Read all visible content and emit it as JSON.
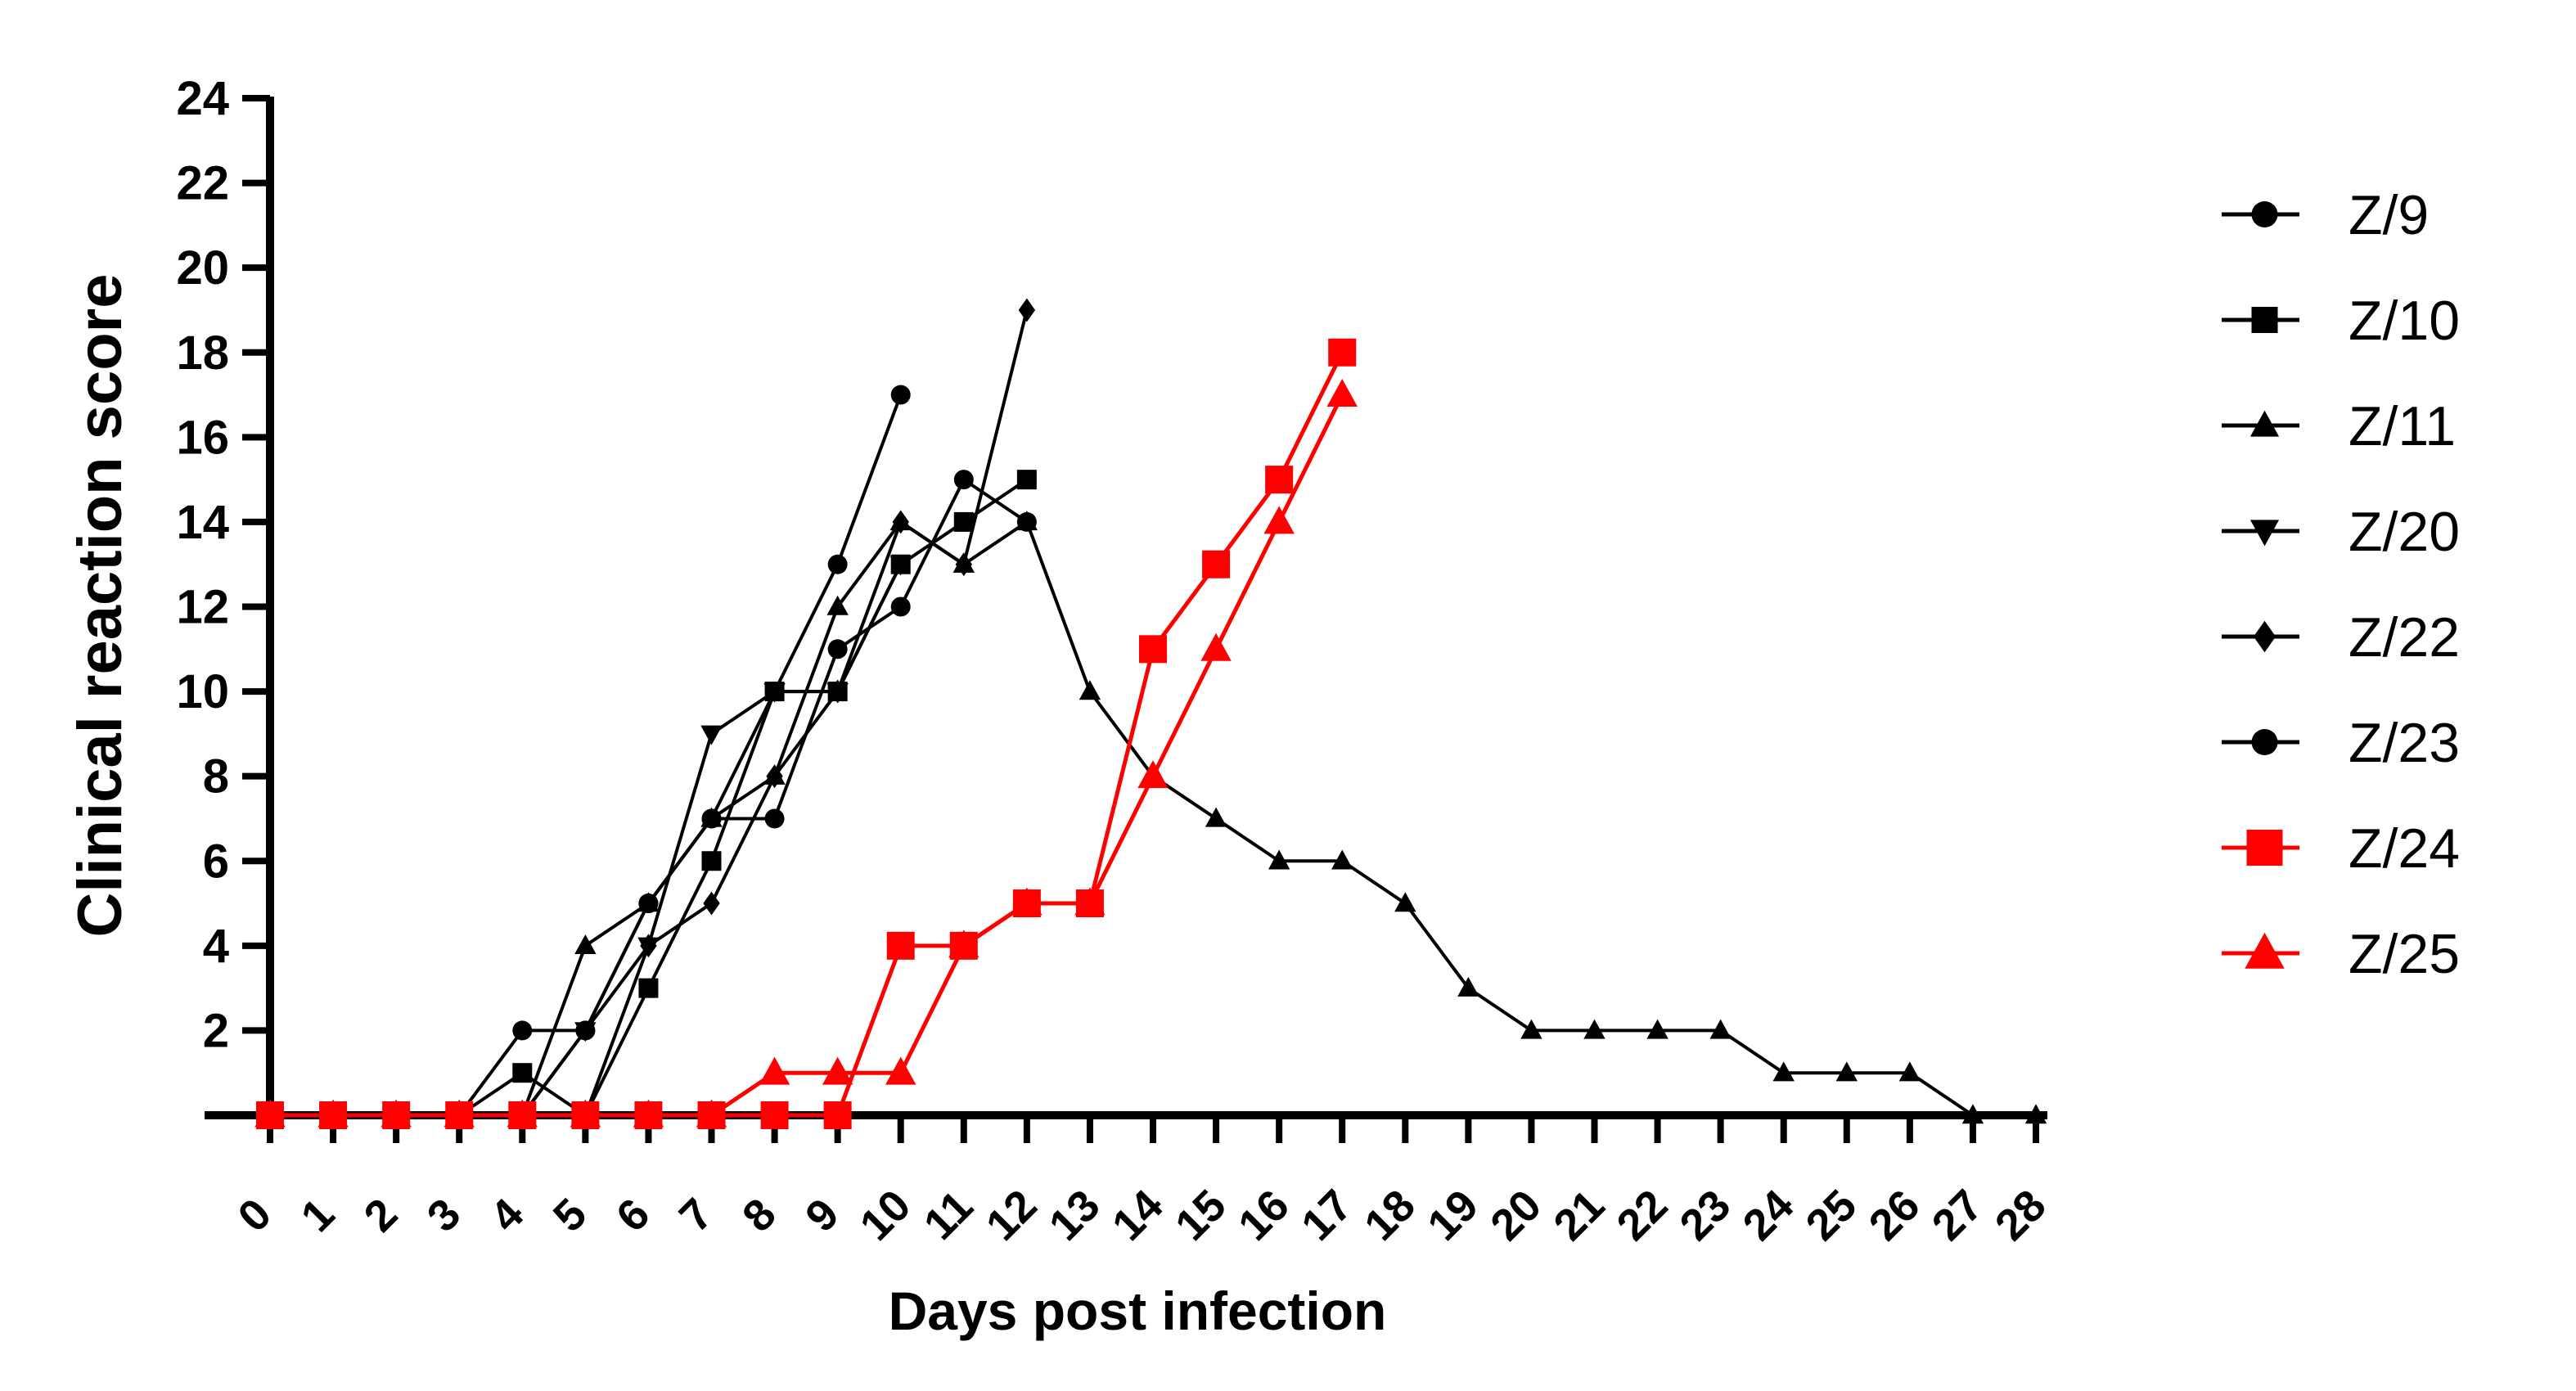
{
  "chart_data": {
    "type": "line",
    "title": "",
    "xlabel": "Days post infection",
    "ylabel": "Clinical reaction score",
    "xlim": [
      0,
      28
    ],
    "ylim": [
      0,
      24
    ],
    "x_ticks": [
      0,
      1,
      2,
      3,
      4,
      5,
      6,
      7,
      8,
      9,
      10,
      11,
      12,
      13,
      14,
      15,
      16,
      17,
      18,
      19,
      20,
      21,
      22,
      23,
      24,
      25,
      26,
      27,
      28
    ],
    "y_ticks": [
      2,
      4,
      6,
      8,
      10,
      12,
      14,
      16,
      18,
      20,
      22,
      24
    ],
    "grid": false,
    "legend_position": "right",
    "series": [
      {
        "name": "Z/9",
        "color": "#000000",
        "marker": "circle",
        "x": [
          0,
          1,
          2,
          3,
          4,
          5,
          6,
          7,
          8,
          9,
          10,
          11,
          12
        ],
        "values": [
          0,
          0,
          0,
          0,
          2,
          2,
          5,
          7,
          7,
          11,
          12,
          15,
          14
        ]
      },
      {
        "name": "Z/10",
        "color": "#000000",
        "marker": "square",
        "x": [
          0,
          1,
          2,
          3,
          4,
          5,
          6,
          7,
          8,
          9,
          10,
          11,
          12
        ],
        "values": [
          0,
          0,
          0,
          0,
          1,
          0,
          3,
          6,
          10,
          10,
          13,
          14,
          15
        ]
      },
      {
        "name": "Z/11",
        "color": "#000000",
        "marker": "triangle-up",
        "x": [
          0,
          1,
          2,
          3,
          4,
          5,
          6,
          7,
          8,
          9,
          10,
          11,
          12,
          13,
          14,
          15,
          16,
          17,
          18,
          19,
          20,
          21,
          22,
          23,
          24,
          25,
          26,
          27,
          28
        ],
        "values": [
          0,
          0,
          0,
          0,
          0,
          4,
          5,
          7,
          8,
          12,
          14,
          13,
          14,
          10,
          8,
          7,
          6,
          6,
          5,
          3,
          2,
          2,
          2,
          2,
          1,
          1,
          1,
          0,
          0
        ]
      },
      {
        "name": "Z/20",
        "color": "#000000",
        "marker": "triangle-down",
        "x": [
          0,
          1,
          2,
          3,
          4,
          5,
          6,
          7,
          8,
          9,
          10
        ],
        "values": [
          0,
          0,
          0,
          0,
          0,
          2,
          4,
          9,
          10,
          10,
          13
        ]
      },
      {
        "name": "Z/22",
        "color": "#000000",
        "marker": "diamond",
        "x": [
          0,
          1,
          2,
          3,
          4,
          5,
          6,
          7,
          8,
          9,
          10,
          11,
          12
        ],
        "values": [
          0,
          0,
          0,
          0,
          0,
          0,
          4,
          5,
          8,
          10,
          14,
          13,
          19
        ]
      },
      {
        "name": "Z/23",
        "color": "#000000",
        "marker": "circle",
        "x": [
          0,
          1,
          2,
          3,
          4,
          5,
          6,
          7,
          8,
          9,
          10
        ],
        "values": [
          0,
          0,
          0,
          0,
          0,
          2,
          5,
          7,
          10,
          13,
          17
        ]
      },
      {
        "name": "Z/24",
        "color": "#ff0000",
        "marker": "square",
        "x": [
          0,
          1,
          2,
          3,
          4,
          5,
          6,
          7,
          8,
          9,
          10,
          11,
          12,
          13,
          14,
          15,
          16,
          17
        ],
        "values": [
          0,
          0,
          0,
          0,
          0,
          0,
          0,
          0,
          0,
          0,
          4,
          4,
          5,
          5,
          11,
          13,
          15,
          18
        ]
      },
      {
        "name": "Z/25",
        "color": "#ff0000",
        "marker": "triangle-up",
        "x": [
          0,
          1,
          2,
          3,
          4,
          5,
          6,
          7,
          8,
          9,
          10,
          11,
          12,
          13,
          14,
          15,
          16,
          17
        ],
        "values": [
          0,
          0,
          0,
          0,
          0,
          0,
          0,
          0,
          1,
          1,
          1,
          4,
          5,
          5,
          8,
          11,
          14,
          17
        ]
      }
    ]
  }
}
